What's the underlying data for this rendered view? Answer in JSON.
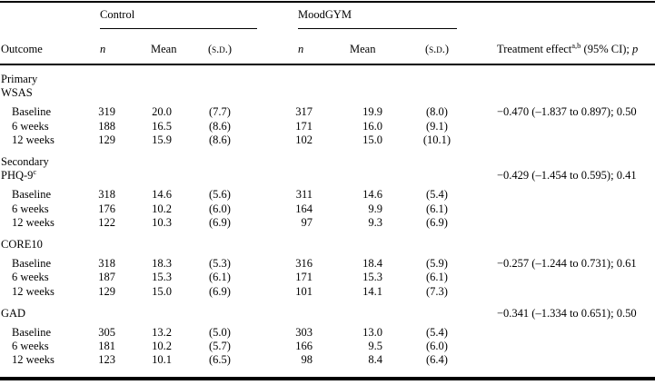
{
  "colors": {
    "background": "#ffffff",
    "text": "#000000",
    "rule": "#000000"
  },
  "header": {
    "outcome": "Outcome",
    "groups": [
      {
        "label": "Control",
        "n": "n",
        "mean": "Mean",
        "sd": "(s.d.)"
      },
      {
        "label": "MoodGYM",
        "n": "n",
        "mean": "Mean",
        "sd": "(s.d.)"
      }
    ],
    "treatment": {
      "text": "Treatment effect",
      "sup": "a,b",
      "rest": " (95% CI); ",
      "p": "p"
    }
  },
  "rows": [
    {
      "label": "Primary"
    },
    {
      "label": "WSAS"
    },
    {
      "label": "Baseline",
      "indent": true,
      "gap": "sub",
      "cells": [
        "319",
        "20.0",
        "(7.7)",
        "317",
        "19.9",
        "(8.0)"
      ],
      "effect": "−0.470 (–1.837 to 0.897); 0.50"
    },
    {
      "label": "6 weeks",
      "indent": true,
      "cells": [
        "188",
        "16.5",
        "(8.6)",
        "171",
        "16.0",
        "(9.1)"
      ]
    },
    {
      "label": "12 weeks",
      "indent": true,
      "cells": [
        "129",
        "15.9",
        "(8.6)",
        "102",
        "15.0",
        "(10.1)"
      ]
    },
    {
      "label": "Secondary",
      "gap": "section"
    },
    {
      "label": "PHQ-9",
      "sup": "c",
      "effect": "−0.429 (–1.454 to 0.595); 0.41"
    },
    {
      "label": "Baseline",
      "indent": true,
      "gap": "sub",
      "cells": [
        "318",
        "14.6",
        "(5.6)",
        "311",
        "14.6",
        "(5.4)"
      ]
    },
    {
      "label": "6 weeks",
      "indent": true,
      "cells": [
        "176",
        "10.2",
        "(6.0)",
        "164",
        "9.9",
        "(6.1)"
      ]
    },
    {
      "label": "12 weeks",
      "indent": true,
      "cells": [
        "122",
        "10.3",
        "(6.9)",
        "97",
        "9.3",
        "(6.9)"
      ]
    },
    {
      "label": "CORE10",
      "gap": "section"
    },
    {
      "label": "Baseline",
      "indent": true,
      "gap": "sub",
      "cells": [
        "318",
        "18.3",
        "(5.3)",
        "316",
        "18.4",
        "(5.9)"
      ],
      "effect": "−0.257 (–1.244 to 0.731); 0.61"
    },
    {
      "label": "6 weeks",
      "indent": true,
      "cells": [
        "187",
        "15.3",
        "(6.1)",
        "171",
        "15.3",
        "(6.1)"
      ]
    },
    {
      "label": "12 weeks",
      "indent": true,
      "cells": [
        "129",
        "15.0",
        "(6.9)",
        "101",
        "14.1",
        "(7.3)"
      ]
    },
    {
      "label": "GAD",
      "gap": "section",
      "effect": "−0.341 (–1.334 to 0.651); 0.50"
    },
    {
      "label": "Baseline",
      "indent": true,
      "gap": "sub",
      "cells": [
        "305",
        "13.2",
        "(5.0)",
        "303",
        "13.0",
        "(5.4)"
      ]
    },
    {
      "label": "6 weeks",
      "indent": true,
      "cells": [
        "181",
        "10.2",
        "(5.7)",
        "166",
        "9.5",
        "(6.0)"
      ]
    },
    {
      "label": "12 weeks",
      "indent": true,
      "cells": [
        "123",
        "10.1",
        "(6.5)",
        "98",
        "8.4",
        "(6.4)"
      ]
    }
  ]
}
